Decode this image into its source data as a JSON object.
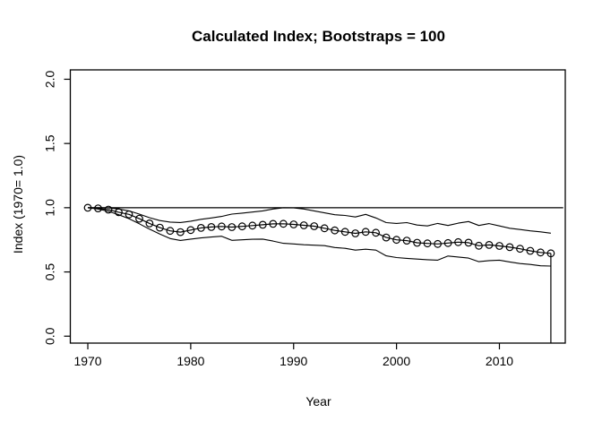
{
  "figure": {
    "title": "Calculated Index; Bootstraps = 100",
    "xlabel": "Year",
    "ylabel": "Index (1970= 1.0)"
  },
  "chart_data": {
    "type": "line",
    "title": "Calculated Index; Bootstraps = 100",
    "xlabel": "Year",
    "ylabel": "Index (1970= 1.0)",
    "x": [
      1970,
      1971,
      1972,
      1973,
      1974,
      1975,
      1976,
      1977,
      1978,
      1979,
      1980,
      1981,
      1982,
      1983,
      1984,
      1985,
      1986,
      1987,
      1988,
      1989,
      1990,
      1991,
      1992,
      1993,
      1994,
      1995,
      1996,
      1997,
      1998,
      1999,
      2000,
      2001,
      2002,
      2003,
      2004,
      2005,
      2006,
      2007,
      2008,
      2009,
      2010,
      2011,
      2012,
      2013,
      2014,
      2015
    ],
    "series": [
      {
        "name": "calculated-index",
        "marker": "open-circle",
        "values": [
          1.0,
          0.995,
          0.985,
          0.965,
          0.948,
          0.915,
          0.878,
          0.845,
          0.82,
          0.81,
          0.826,
          0.843,
          0.85,
          0.854,
          0.849,
          0.855,
          0.861,
          0.867,
          0.874,
          0.875,
          0.87,
          0.863,
          0.856,
          0.84,
          0.823,
          0.812,
          0.8,
          0.812,
          0.805,
          0.768,
          0.75,
          0.744,
          0.727,
          0.722,
          0.718,
          0.725,
          0.732,
          0.728,
          0.704,
          0.71,
          0.703,
          0.693,
          0.68,
          0.664,
          0.652,
          0.645
        ]
      },
      {
        "name": "bootstrap-upper-bound",
        "marker": "none",
        "values": [
          1.0,
          1.0,
          0.998,
          0.99,
          0.975,
          0.95,
          0.922,
          0.9,
          0.888,
          0.885,
          0.895,
          0.91,
          0.92,
          0.932,
          0.95,
          0.958,
          0.966,
          0.975,
          0.99,
          1.0,
          0.998,
          0.99,
          0.975,
          0.96,
          0.945,
          0.94,
          0.928,
          0.948,
          0.92,
          0.884,
          0.878,
          0.884,
          0.865,
          0.858,
          0.878,
          0.862,
          0.88,
          0.892,
          0.862,
          0.876,
          0.858,
          0.84,
          0.83,
          0.82,
          0.812,
          0.802
        ]
      },
      {
        "name": "bootstrap-lower-bound",
        "marker": "none",
        "values": [
          1.0,
          0.99,
          0.972,
          0.945,
          0.915,
          0.875,
          0.833,
          0.795,
          0.76,
          0.745,
          0.756,
          0.765,
          0.772,
          0.778,
          0.746,
          0.75,
          0.754,
          0.756,
          0.74,
          0.723,
          0.718,
          0.712,
          0.708,
          0.705,
          0.69,
          0.684,
          0.67,
          0.677,
          0.67,
          0.625,
          0.612,
          0.606,
          0.6,
          0.595,
          0.592,
          0.624,
          0.616,
          0.608,
          0.58,
          0.588,
          0.592,
          0.578,
          0.565,
          0.558,
          0.548,
          0.546
        ]
      }
    ],
    "reference_line": {
      "y": 1.0,
      "x_start": 1970,
      "x_end": 2016.2
    },
    "terminal_drop": {
      "x": 2015,
      "from": 0.645,
      "to": -0.054
    },
    "x_ticks": [
      1970,
      1980,
      1990,
      2000,
      2010
    ],
    "x_tick_labels": [
      "1970",
      "1980",
      "1990",
      "2000",
      "2010"
    ],
    "y_tick_values": [
      0.0,
      0.5,
      1.0,
      1.5,
      2.0
    ],
    "y_tick_labels": [
      "0.0",
      "0.5",
      "1.0",
      "1.5",
      "2.0"
    ],
    "xlim": [
      1968.3,
      2016.4
    ],
    "ylim": [
      -0.054,
      2.073
    ],
    "grid": false,
    "legend": null,
    "colors": {
      "line": "#000000",
      "background": "#ffffff"
    }
  }
}
